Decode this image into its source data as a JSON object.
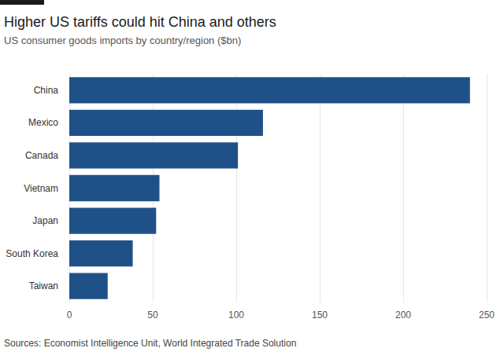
{
  "chart_data": {
    "type": "bar",
    "orientation": "horizontal",
    "title": "Higher US tariffs could hit China and others",
    "subtitle": "US consumer goods imports by country/region ($bn)",
    "source": "Sources: Economist Intelligence Unit, World Integrated Trade Solution",
    "categories": [
      "China",
      "Mexico",
      "Canada",
      "Vietnam",
      "Japan",
      "South Korea",
      "Taiwan"
    ],
    "values": [
      240,
      116,
      101,
      54,
      52,
      38,
      23
    ],
    "color": "#1f5189",
    "xlim": [
      0,
      250
    ],
    "xticks": [
      0,
      50,
      100,
      150,
      200,
      250
    ],
    "grid": true
  }
}
